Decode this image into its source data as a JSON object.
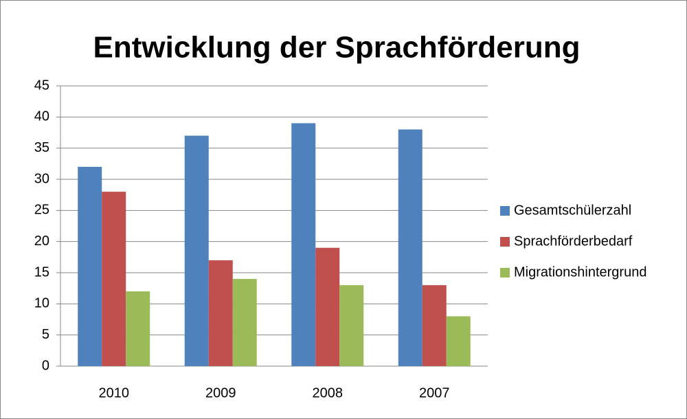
{
  "chart_data": {
    "type": "bar",
    "title": "Entwicklung der Sprachförderung",
    "categories": [
      "2010",
      "2009",
      "2008",
      "2007"
    ],
    "series": [
      {
        "name": "Gesamtschülerzahl",
        "color": "#4f81bd",
        "values": [
          32,
          37,
          39,
          38
        ]
      },
      {
        "name": "Sprachförderbedarf",
        "color": "#c0504d",
        "values": [
          28,
          17,
          19,
          13
        ]
      },
      {
        "name": "Migrationshintergrund",
        "color": "#9bbb59",
        "values": [
          12,
          14,
          13,
          8
        ]
      }
    ],
    "ylim": [
      0,
      45
    ],
    "yticks": [
      0,
      5,
      10,
      15,
      20,
      25,
      30,
      35,
      40,
      45
    ],
    "grid": true,
    "legend": "right"
  }
}
